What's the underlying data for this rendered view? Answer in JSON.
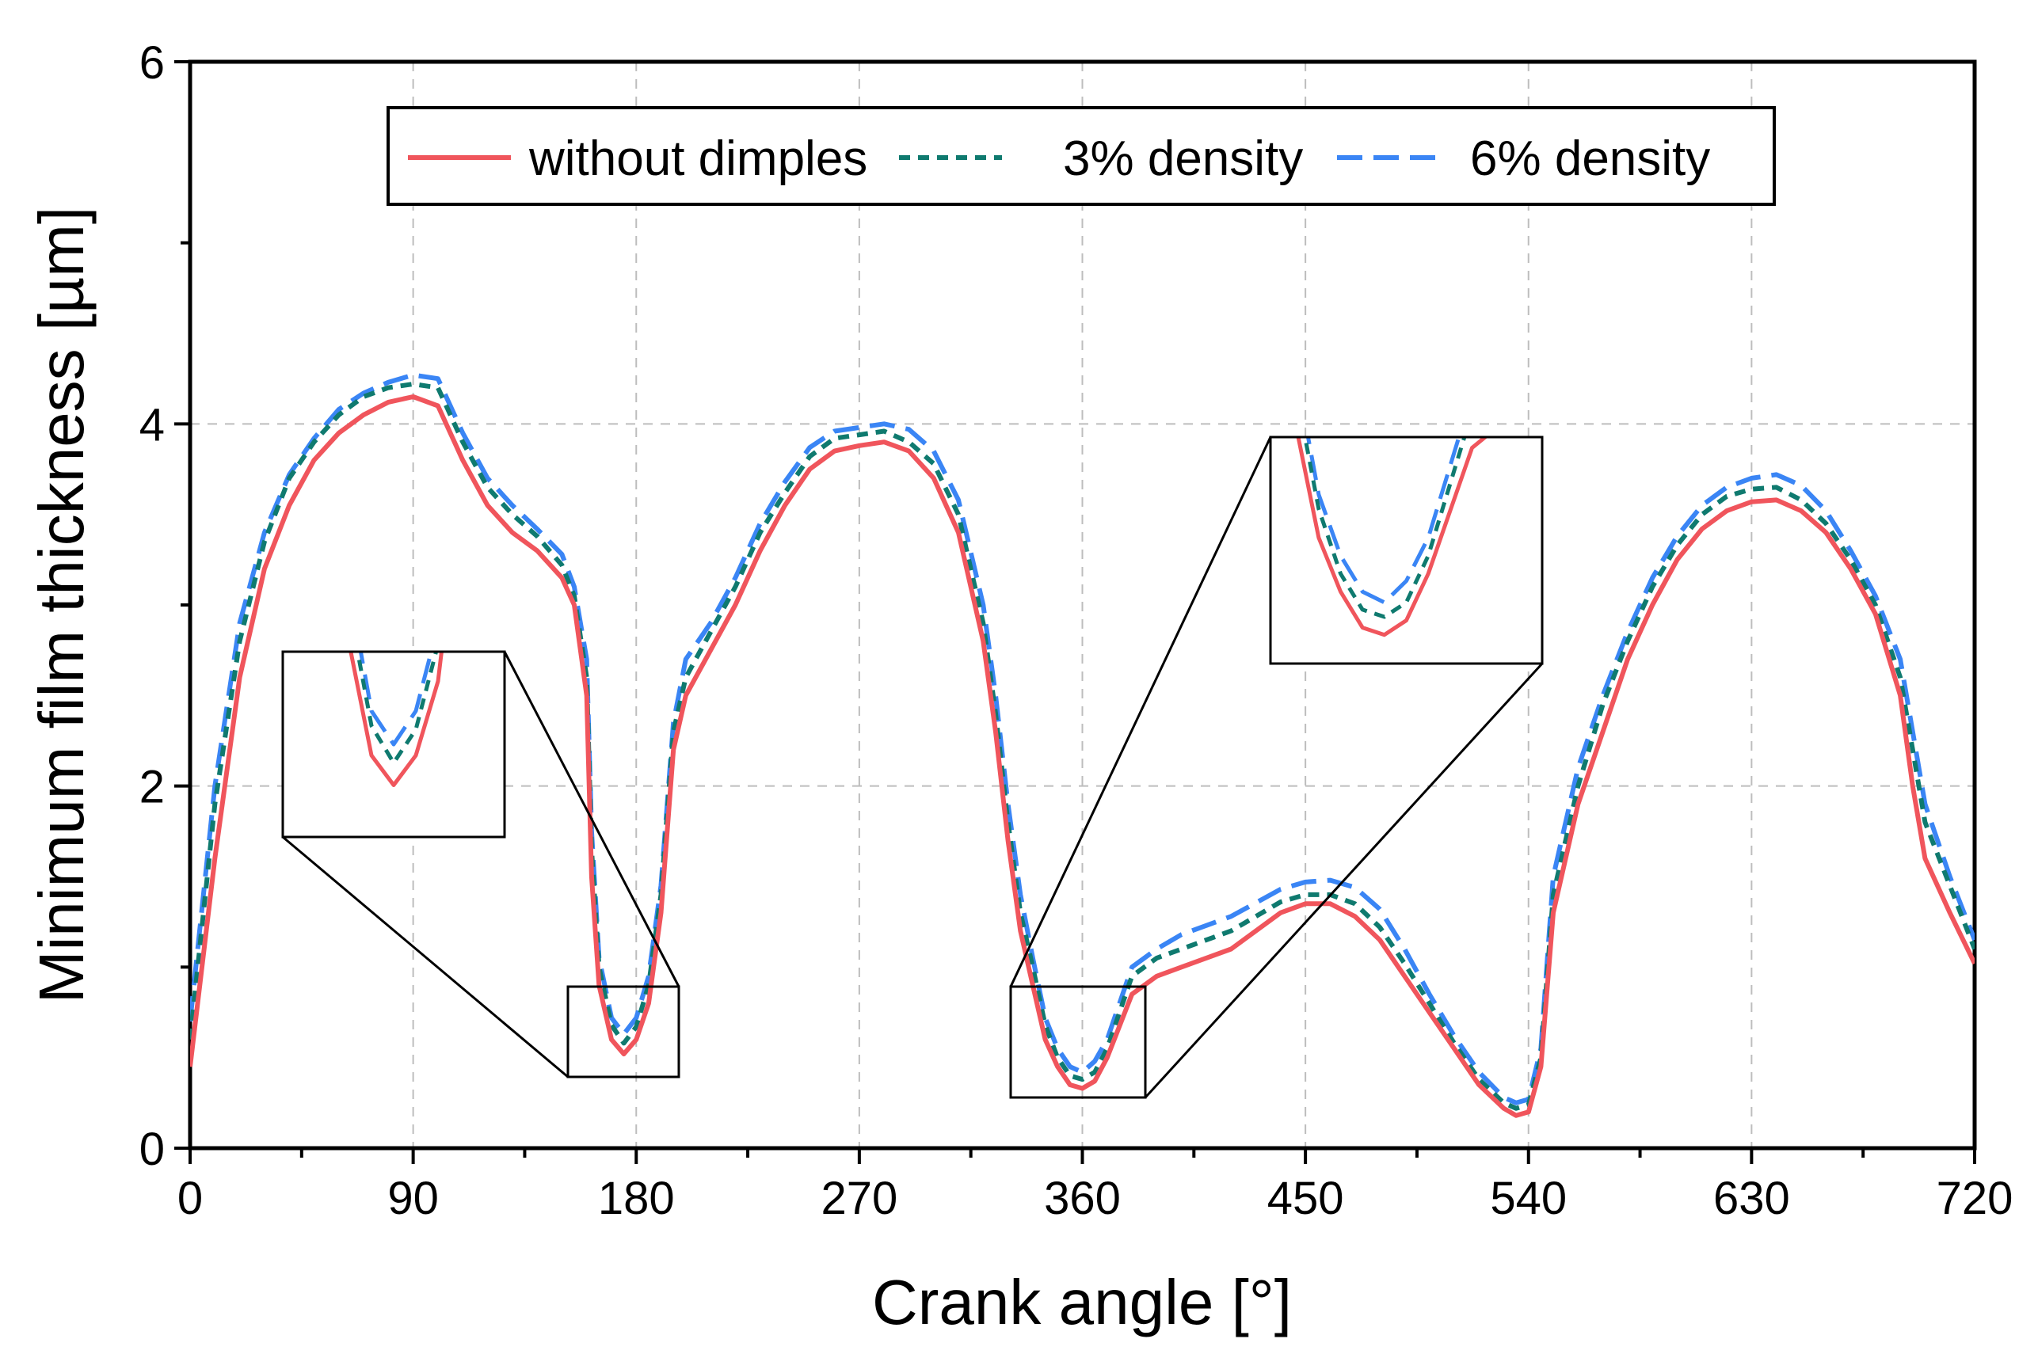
{
  "chart_data": {
    "type": "line",
    "title": "",
    "xlabel": "Crank angle [°]",
    "ylabel": "Minimum film thickness [µm]",
    "xlim": [
      0,
      720
    ],
    "ylim": [
      0,
      6
    ],
    "xticks": [
      0,
      90,
      180,
      270,
      360,
      450,
      540,
      630,
      720
    ],
    "xtick_labels": [
      "0",
      "90",
      "180",
      "270",
      "360",
      "450",
      "540",
      "630",
      "720"
    ],
    "yticks": [
      0,
      2,
      4,
      6
    ],
    "ytick_labels": [
      "0",
      "2",
      "4",
      "6"
    ],
    "grid": true,
    "legend_position": "top-center",
    "series": [
      {
        "name": "without dimples",
        "color": "#f0555c",
        "style": "solid",
        "x": [
          0,
          10,
          20,
          30,
          40,
          50,
          60,
          70,
          80,
          90,
          100,
          110,
          120,
          130,
          140,
          150,
          155,
          160,
          162,
          165,
          170,
          175,
          180,
          185,
          190,
          195,
          200,
          210,
          220,
          230,
          240,
          250,
          260,
          270,
          280,
          290,
          300,
          310,
          320,
          325,
          330,
          335,
          340,
          345,
          350,
          355,
          360,
          365,
          370,
          380,
          390,
          400,
          420,
          440,
          450,
          460,
          470,
          480,
          490,
          500,
          510,
          520,
          530,
          535,
          540,
          545,
          550,
          560,
          570,
          580,
          590,
          600,
          610,
          620,
          630,
          640,
          650,
          660,
          670,
          680,
          690,
          695,
          700,
          710,
          720
        ],
        "y": [
          0.45,
          1.6,
          2.6,
          3.2,
          3.55,
          3.8,
          3.95,
          4.05,
          4.12,
          4.15,
          4.1,
          3.8,
          3.55,
          3.4,
          3.3,
          3.15,
          3.0,
          2.5,
          1.5,
          0.9,
          0.6,
          0.52,
          0.6,
          0.8,
          1.3,
          2.2,
          2.5,
          2.75,
          3.0,
          3.3,
          3.55,
          3.75,
          3.85,
          3.88,
          3.9,
          3.85,
          3.7,
          3.4,
          2.8,
          2.3,
          1.7,
          1.2,
          0.9,
          0.6,
          0.45,
          0.35,
          0.33,
          0.37,
          0.5,
          0.85,
          0.95,
          1.0,
          1.1,
          1.3,
          1.35,
          1.35,
          1.28,
          1.15,
          0.95,
          0.75,
          0.55,
          0.35,
          0.22,
          0.18,
          0.2,
          0.45,
          1.3,
          1.9,
          2.3,
          2.7,
          3.0,
          3.25,
          3.42,
          3.52,
          3.57,
          3.58,
          3.52,
          3.4,
          3.2,
          2.95,
          2.5,
          2.0,
          1.6,
          1.3,
          1.02
        ]
      },
      {
        "name": "3% density",
        "color": "#0f7a6f",
        "style": "dotted",
        "x": [
          0,
          10,
          20,
          30,
          40,
          50,
          60,
          70,
          80,
          90,
          100,
          110,
          120,
          130,
          140,
          150,
          155,
          160,
          162,
          165,
          170,
          175,
          180,
          185,
          190,
          195,
          200,
          210,
          220,
          230,
          240,
          250,
          260,
          270,
          280,
          290,
          300,
          310,
          320,
          325,
          330,
          335,
          340,
          345,
          350,
          355,
          360,
          365,
          370,
          380,
          390,
          400,
          420,
          440,
          450,
          460,
          470,
          480,
          490,
          500,
          510,
          520,
          530,
          535,
          540,
          545,
          550,
          560,
          570,
          580,
          590,
          600,
          610,
          620,
          630,
          640,
          650,
          660,
          670,
          680,
          690,
          695,
          700,
          710,
          720
        ],
        "y": [
          0.6,
          1.9,
          2.8,
          3.35,
          3.7,
          3.9,
          4.05,
          4.15,
          4.2,
          4.22,
          4.2,
          3.9,
          3.65,
          3.5,
          3.38,
          3.22,
          3.05,
          2.6,
          1.65,
          1.0,
          0.68,
          0.58,
          0.67,
          0.9,
          1.4,
          2.3,
          2.6,
          2.85,
          3.1,
          3.4,
          3.62,
          3.82,
          3.92,
          3.94,
          3.96,
          3.9,
          3.78,
          3.5,
          2.9,
          2.4,
          1.8,
          1.3,
          1.0,
          0.68,
          0.5,
          0.4,
          0.38,
          0.42,
          0.55,
          0.95,
          1.05,
          1.1,
          1.2,
          1.36,
          1.4,
          1.4,
          1.35,
          1.22,
          1.02,
          0.8,
          0.58,
          0.38,
          0.25,
          0.22,
          0.24,
          0.5,
          1.4,
          2.0,
          2.45,
          2.8,
          3.1,
          3.33,
          3.5,
          3.6,
          3.64,
          3.65,
          3.58,
          3.45,
          3.25,
          3.0,
          2.6,
          2.2,
          1.8,
          1.45,
          1.1
        ]
      },
      {
        "name": "6% density",
        "color": "#3a85f5",
        "style": "dashed",
        "x": [
          0,
          10,
          20,
          30,
          40,
          50,
          60,
          70,
          80,
          90,
          100,
          110,
          120,
          130,
          140,
          150,
          155,
          160,
          162,
          165,
          170,
          175,
          180,
          185,
          190,
          195,
          200,
          210,
          220,
          230,
          240,
          250,
          260,
          270,
          280,
          290,
          300,
          310,
          320,
          325,
          330,
          335,
          340,
          345,
          350,
          355,
          360,
          365,
          370,
          380,
          390,
          400,
          420,
          440,
          450,
          460,
          470,
          480,
          490,
          500,
          510,
          520,
          530,
          535,
          540,
          545,
          550,
          560,
          570,
          580,
          590,
          600,
          610,
          620,
          630,
          640,
          650,
          660,
          670,
          680,
          690,
          695,
          700,
          710,
          720
        ],
        "y": [
          0.7,
          2.0,
          2.9,
          3.4,
          3.72,
          3.92,
          4.08,
          4.17,
          4.23,
          4.27,
          4.25,
          3.95,
          3.7,
          3.55,
          3.42,
          3.28,
          3.1,
          2.7,
          1.75,
          1.05,
          0.72,
          0.63,
          0.72,
          0.95,
          1.45,
          2.35,
          2.7,
          2.9,
          3.15,
          3.45,
          3.68,
          3.87,
          3.96,
          3.98,
          4.0,
          3.97,
          3.85,
          3.58,
          3.0,
          2.5,
          1.9,
          1.4,
          1.05,
          0.72,
          0.55,
          0.45,
          0.42,
          0.48,
          0.6,
          1.0,
          1.1,
          1.18,
          1.28,
          1.43,
          1.47,
          1.48,
          1.44,
          1.32,
          1.1,
          0.85,
          0.62,
          0.42,
          0.28,
          0.25,
          0.27,
          0.55,
          1.5,
          2.1,
          2.5,
          2.85,
          3.15,
          3.38,
          3.55,
          3.65,
          3.7,
          3.72,
          3.66,
          3.52,
          3.3,
          3.05,
          2.7,
          2.3,
          1.9,
          1.5,
          1.15
        ]
      }
    ],
    "insets": [
      {
        "name": "inset-left",
        "source_region": {
          "x": [
            150,
            200
          ],
          "y": [
            0.38,
            0.88
          ]
        }
      },
      {
        "name": "inset-right",
        "source_region": {
          "x": [
            334,
            396
          ],
          "y": [
            0.25,
            0.88
          ]
        }
      }
    ]
  }
}
